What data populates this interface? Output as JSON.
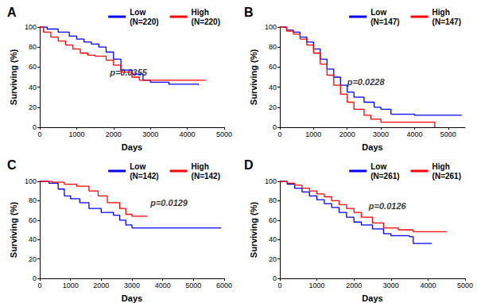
{
  "chart_data": [
    {
      "type": "line",
      "title": "A",
      "x_label": "Days",
      "y_label": "Surviving (%)",
      "xlim": [
        0,
        5000
      ],
      "xticks": [
        0,
        1000,
        2000,
        3000,
        4000,
        5000
      ],
      "ylim": [
        0,
        100
      ],
      "yticks": [
        0,
        20,
        40,
        60,
        80,
        100
      ],
      "grid": false,
      "legend": "upper right",
      "annotations": [
        {
          "text": "p=0.0355",
          "x": 1900,
          "y": 55
        }
      ],
      "series": [
        {
          "name": "Low\n(N=220)",
          "color": "#0000ff",
          "line_style": "step",
          "x": [
            0,
            200,
            500,
            800,
            1000,
            1200,
            1400,
            1600,
            1800,
            2000,
            2200,
            2500,
            2800,
            3000,
            3500,
            4300
          ],
          "values": [
            100,
            98,
            95,
            91,
            88,
            85,
            83,
            80,
            75,
            68,
            57,
            53,
            47,
            45,
            43,
            42
          ]
        },
        {
          "name": "High\n(N=220)",
          "color": "#ff0000",
          "line_style": "step",
          "x": [
            0,
            100,
            300,
            500,
            700,
            900,
            1100,
            1300,
            1500,
            1800,
            2000,
            2200,
            2500,
            2700,
            4500
          ],
          "values": [
            100,
            95,
            90,
            86,
            82,
            78,
            74,
            72,
            71,
            67,
            62,
            55,
            50,
            47,
            47
          ]
        }
      ]
    },
    {
      "type": "line",
      "title": "B",
      "x_label": "Days",
      "y_label": "Surviving (%)",
      "xlim": [
        0,
        5500
      ],
      "xticks": [
        0,
        1000,
        2000,
        3000,
        4000,
        5000
      ],
      "ylim": [
        0,
        100
      ],
      "yticks": [
        0,
        20,
        40,
        60,
        80,
        100
      ],
      "grid": false,
      "legend": "upper right",
      "annotations": [
        {
          "text": "p=0.0228",
          "x": 2000,
          "y": 45
        }
      ],
      "series": [
        {
          "name": "Low\n(N=147)",
          "color": "#0000ff",
          "line_style": "step",
          "x": [
            0,
            200,
            400,
            600,
            800,
            1000,
            1200,
            1400,
            1600,
            1800,
            2000,
            2200,
            2500,
            2800,
            3000,
            3300,
            4000,
            5400
          ],
          "values": [
            100,
            97,
            95,
            90,
            85,
            78,
            68,
            58,
            50,
            42,
            35,
            30,
            25,
            20,
            18,
            13,
            12,
            12
          ]
        },
        {
          "name": "High\n(N=147)",
          "color": "#ff0000",
          "line_style": "step",
          "x": [
            0,
            200,
            400,
            600,
            800,
            1000,
            1200,
            1400,
            1600,
            1800,
            2000,
            2200,
            2500,
            2700,
            3000,
            4550,
            4600
          ],
          "values": [
            100,
            96,
            93,
            88,
            82,
            74,
            63,
            52,
            42,
            33,
            25,
            18,
            12,
            8,
            5,
            5,
            0
          ]
        }
      ]
    },
    {
      "type": "line",
      "title": "C",
      "x_label": "Days",
      "y_label": "Surviving (%)",
      "xlim": [
        0,
        6000
      ],
      "xticks": [
        0,
        1000,
        2000,
        3000,
        4000,
        5000,
        6000
      ],
      "ylim": [
        0,
        100
      ],
      "yticks": [
        0,
        20,
        40,
        60,
        80,
        100
      ],
      "grid": false,
      "legend": "upper right",
      "annotations": [
        {
          "text": "p=0.0129",
          "x": 3600,
          "y": 78
        }
      ],
      "series": [
        {
          "name": "Low\n(N=142)",
          "color": "#0000ff",
          "line_style": "step",
          "x": [
            0,
            300,
            600,
            800,
            1000,
            1300,
            1600,
            2000,
            2400,
            2600,
            2800,
            3000,
            5900
          ],
          "values": [
            100,
            98,
            92,
            85,
            82,
            78,
            72,
            68,
            65,
            60,
            55,
            52,
            52
          ]
        },
        {
          "name": "High\n(N=142)",
          "color": "#ff0000",
          "line_style": "step",
          "x": [
            0,
            400,
            800,
            1200,
            1600,
            1900,
            2200,
            2600,
            2800,
            3000,
            3500
          ],
          "values": [
            100,
            99,
            97,
            95,
            90,
            85,
            78,
            72,
            66,
            64,
            64
          ]
        }
      ]
    },
    {
      "type": "line",
      "title": "D",
      "x_label": "Days",
      "y_label": "Surviving (%)",
      "xlim": [
        0,
        5000
      ],
      "xticks": [
        0,
        1000,
        2000,
        3000,
        4000,
        5000
      ],
      "ylim": [
        0,
        100
      ],
      "yticks": [
        0,
        20,
        40,
        60,
        80,
        100
      ],
      "grid": false,
      "legend": "upper right",
      "annotations": [
        {
          "text": "p=0.0126",
          "x": 2400,
          "y": 75
        }
      ],
      "series": [
        {
          "name": "Low\n(N=261)",
          "color": "#0000ff",
          "line_style": "step",
          "x": [
            0,
            200,
            400,
            600,
            800,
            1000,
            1200,
            1400,
            1600,
            1800,
            2000,
            2200,
            2500,
            2800,
            3000,
            3500,
            3600,
            4100
          ],
          "values": [
            100,
            97,
            93,
            89,
            85,
            81,
            77,
            73,
            68,
            63,
            58,
            55,
            51,
            46,
            44,
            43,
            36,
            36
          ]
        },
        {
          "name": "High\n(N=261)",
          "color": "#ff0000",
          "line_style": "step",
          "x": [
            0,
            200,
            400,
            600,
            800,
            1000,
            1200,
            1400,
            1600,
            1800,
            2000,
            2200,
            2500,
            2800,
            3200,
            3600,
            4500
          ],
          "values": [
            100,
            98,
            96,
            93,
            90,
            87,
            84,
            80,
            76,
            72,
            68,
            63,
            57,
            52,
            50,
            48,
            48
          ]
        }
      ]
    }
  ]
}
